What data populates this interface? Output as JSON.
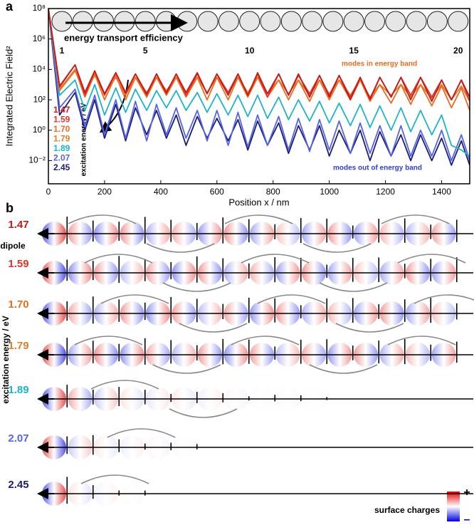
{
  "chart_data": {
    "type": "line",
    "panel_label": "a",
    "y_label": "Integrated Electric Field²",
    "x_label": "Position x / nm",
    "y_scale": "log",
    "ylim": [
      0.0003,
      100000000
    ],
    "xlim": [
      0,
      1500
    ],
    "yticks": [
      {
        "value": 0.01,
        "label": "10⁻²"
      },
      {
        "value": 1,
        "label": "10⁰"
      },
      {
        "value": 100,
        "label": "10²"
      },
      {
        "value": 10000,
        "label": "10⁴"
      },
      {
        "value": 1000000,
        "label": "10⁶"
      },
      {
        "value": 100000000,
        "label": "10⁸"
      }
    ],
    "xticks": [
      0,
      200,
      400,
      600,
      800,
      1000,
      1200,
      1400
    ],
    "x": [
      0,
      40,
      95,
      130,
      165,
      200,
      240,
      275,
      310,
      350,
      385,
      420,
      455,
      490,
      530,
      565,
      600,
      640,
      675,
      710,
      745,
      780,
      820,
      855,
      890,
      930,
      965,
      1000,
      1035,
      1075,
      1110,
      1145,
      1180,
      1220,
      1255,
      1290,
      1325,
      1365,
      1400,
      1435,
      1470,
      1500
    ],
    "series": [
      {
        "name": "1.47",
        "color": "#c41a1a",
        "values": [
          100000000,
          800,
          20000,
          300,
          8000,
          250,
          6000,
          300,
          5000,
          250,
          5000,
          300,
          5000,
          300,
          6000,
          250,
          5000,
          200,
          5000,
          200,
          6000,
          250,
          5000,
          200,
          5000,
          150,
          4000,
          150,
          4000,
          100,
          3000,
          120,
          3000,
          150,
          3000,
          100,
          3000,
          80,
          2000,
          100,
          2000,
          150
        ]
      },
      {
        "name": "1.59",
        "color": "#e8302a",
        "values": [
          100000000,
          700,
          20000,
          200,
          8000,
          200,
          6000,
          250,
          5000,
          200,
          5000,
          250,
          5000,
          200,
          5000,
          250,
          5000,
          300,
          5000,
          200,
          5000,
          150,
          5000,
          200,
          4000,
          250,
          4000,
          200,
          4000,
          150,
          3000,
          100,
          3000,
          150,
          3000,
          200,
          3000,
          150,
          2000,
          100,
          2000,
          80
        ]
      },
      {
        "name": "1.70",
        "color": "#ee6a1e",
        "values": [
          100000000,
          500,
          10000,
          150,
          5000,
          100,
          4000,
          100,
          3000,
          150,
          3000,
          200,
          3000,
          150,
          3000,
          100,
          3000,
          100,
          3000,
          150,
          3000,
          150,
          2000,
          100,
          2000,
          80,
          2000,
          100,
          2000,
          100,
          2000,
          80,
          1000,
          60,
          1000,
          50,
          1000,
          40,
          800,
          30,
          600,
          20
        ]
      },
      {
        "name": "1.79",
        "color": "#d9822b",
        "values": [
          100000000,
          400,
          8000,
          300,
          4000,
          250,
          3000,
          200,
          3000,
          300,
          3000,
          400,
          3000,
          300,
          3000,
          300,
          3000,
          250,
          3000,
          300,
          3000,
          250,
          2000,
          250,
          2000,
          200,
          2000,
          250,
          2000,
          200,
          2000,
          150,
          1000,
          200,
          1000,
          150,
          1000,
          120,
          1000,
          100,
          800,
          80
        ]
      },
      {
        "name": "1.89",
        "color": "#1fb3c9",
        "values": [
          100000000,
          200,
          2000,
          20,
          1000,
          10,
          600,
          15,
          500,
          20,
          400,
          30,
          400,
          20,
          300,
          15,
          250,
          10,
          200,
          8,
          200,
          6,
          150,
          5,
          100,
          4,
          80,
          3,
          60,
          2,
          50,
          1.5,
          40,
          1,
          30,
          0.8,
          20,
          0.5,
          10,
          0.1,
          0.05,
          0.02
        ]
      },
      {
        "name": "2.07",
        "color": "#5563e6",
        "values": [
          100000000,
          30,
          500,
          2,
          200,
          0.5,
          100,
          0.3,
          80,
          0.2,
          50,
          0.5,
          30,
          0.3,
          20,
          0.2,
          20,
          0.1,
          15,
          0.08,
          10,
          0.1,
          8,
          0.05,
          6,
          0.04,
          5,
          0.05,
          4,
          0.03,
          3,
          0.03,
          2,
          0.02,
          2,
          0.02,
          1,
          0.02,
          1,
          0.01,
          0.5,
          0.01
        ]
      },
      {
        "name": "2.45",
        "color": "#1c1c7a",
        "values": [
          100000000,
          10,
          300,
          1,
          100,
          0.3,
          50,
          0.2,
          30,
          0.5,
          20,
          0.3,
          10,
          0.1,
          8,
          0.3,
          6,
          0.2,
          5,
          0.05,
          4,
          0.1,
          3,
          0.03,
          2,
          0.05,
          2,
          0.02,
          1,
          0.03,
          1,
          0.01,
          0.8,
          0.02,
          0.5,
          0.01,
          0.5,
          0.01,
          0.3,
          0.005,
          0.2,
          0.005
        ]
      }
    ],
    "legend_title": "excitation energy / eV",
    "annotations": {
      "efficiency": "energy transport efficiency",
      "in_band": "modes in energy band",
      "out_band": "modes out of energy band"
    },
    "sphere_labels": [
      "1",
      "5",
      "10",
      "15",
      "20"
    ]
  },
  "panel_b": {
    "label": "b",
    "dipole": "dipole",
    "y_label": "excitation energy / eV",
    "rows": [
      "1.47",
      "1.59",
      "1.70",
      "1.79",
      "1.89",
      "2.07",
      "2.45"
    ],
    "colorbar_label": "surface charges",
    "plus": "+",
    "minus": "–"
  }
}
